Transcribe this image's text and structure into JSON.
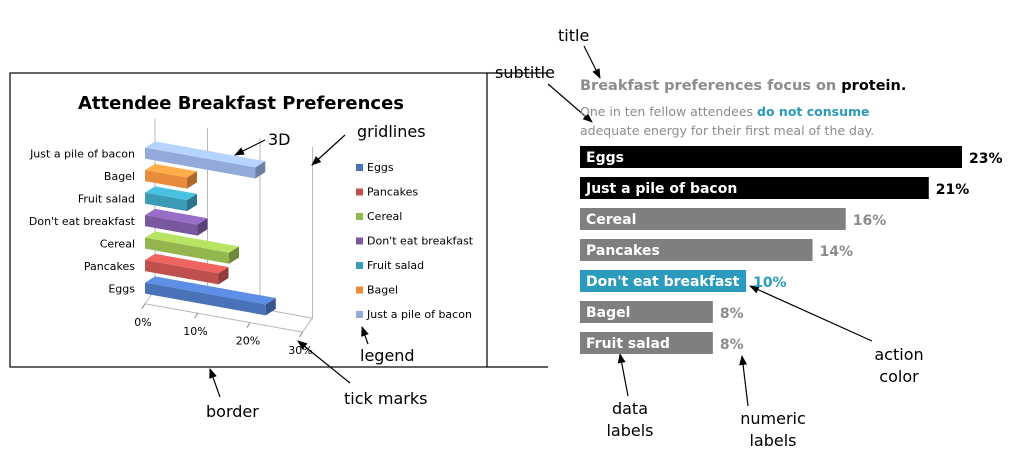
{
  "colors": {
    "black_bar": "#000000",
    "gray_bar": "#7f7f7f",
    "action_color": "#2a9bbd",
    "gray_text": "#8c8c8c"
  },
  "chart_data": [
    {
      "type": "bar",
      "title": "Attendee Breakfast Preferences",
      "categories": [
        "Eggs",
        "Pancakes",
        "Cereal",
        "Don't eat breakfast",
        "Fruit salad",
        "Bagel",
        "Just a pile of bacon"
      ],
      "values": [
        0.23,
        0.14,
        0.16,
        0.1,
        0.08,
        0.08,
        0.21
      ],
      "colors": [
        "#4a72b8",
        "#c0504d",
        "#93b64f",
        "#7a58a0",
        "#3a9bb5",
        "#e88b3a",
        "#92a9d9"
      ],
      "xticks": [
        "0%",
        "10%",
        "20%",
        "30%"
      ],
      "xlim": [
        0,
        0.3
      ],
      "legend": [
        "Eggs",
        "Pancakes",
        "Cereal",
        "Don't eat breakfast",
        "Fruit salad",
        "Bagel",
        "Just a pile of bacon"
      ],
      "legend_position": "right",
      "gridlines": true,
      "style": "3D"
    },
    {
      "type": "bar",
      "title_prefix": "Breakfast preferences focus on ",
      "title_emphasis": "protein",
      "title_end": ".",
      "subtitle_a": "One in ten fellow attendees ",
      "subtitle_accent": "do not consume",
      "subtitle_b": "adequate energy for their first meal of the day.",
      "categories": [
        "Eggs",
        "Just a pile of bacon",
        "Cereal",
        "Pancakes",
        "Don't eat breakfast",
        "Bagel",
        "Fruit salad"
      ],
      "values": [
        23,
        21,
        16,
        14,
        10,
        8,
        8
      ],
      "value_labels": [
        "23%",
        "21%",
        "16%",
        "14%",
        "10%",
        "8%",
        "8%"
      ],
      "bar_colors": [
        "#000000",
        "#000000",
        "#7f7f7f",
        "#7f7f7f",
        "#2a9bbd",
        "#7f7f7f",
        "#7f7f7f"
      ],
      "label_colors": [
        "#000000",
        "#000000",
        "#8c8c8c",
        "#8c8c8c",
        "#2a9bbd",
        "#8c8c8c",
        "#8c8c8c"
      ],
      "gridlines": false
    }
  ],
  "annotations": {
    "three_d": "3D",
    "gridlines": "gridlines",
    "legend": "legend",
    "tick_marks": "tick marks",
    "border": "border",
    "subtitle": "subtitle",
    "title": "title",
    "action_color": "action color",
    "data_labels": "data labels",
    "numeric_labels": "numeric labels"
  }
}
